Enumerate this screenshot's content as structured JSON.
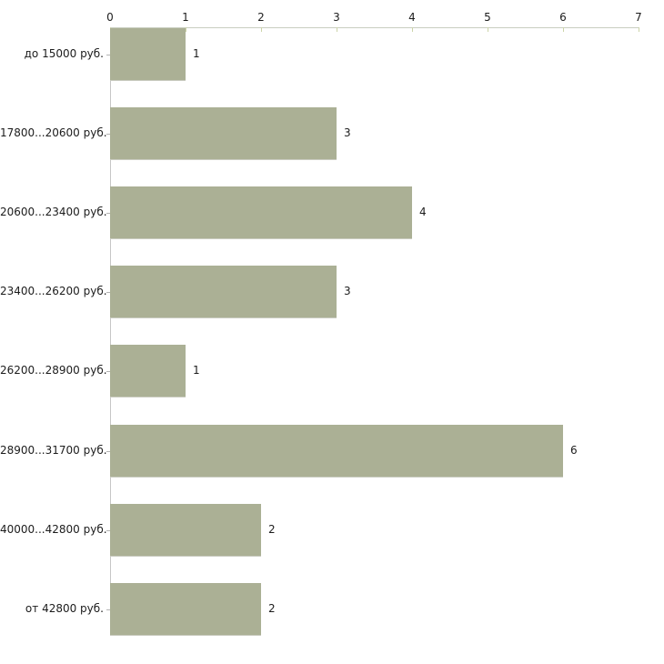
{
  "chart_data": {
    "type": "bar",
    "orientation": "horizontal",
    "title": "",
    "xlabel": "",
    "ylabel": "",
    "categories": [
      "до 15000 руб.",
      "17800...20600 руб.",
      "20600...23400 руб.",
      "23400...26200 руб.",
      "26200...28900 руб.",
      "28900...31700 руб.",
      "40000...42800 руб.",
      "от 42800 руб."
    ],
    "values": [
      1,
      3,
      4,
      3,
      1,
      6,
      2,
      2
    ],
    "value_labels": [
      "1",
      "3",
      "4",
      "3",
      "1",
      "6",
      "2",
      "2"
    ],
    "xlim": [
      0,
      7
    ],
    "x_ticks": [
      "0",
      "1",
      "2",
      "3",
      "4",
      "5",
      "6",
      "7"
    ],
    "axis_position": "top",
    "grid": false,
    "legend": "none",
    "colors": {
      "bar_fill": "#abb095",
      "bar_bottom_edge": "#c9cbc0",
      "h_axis_line": "#c9cec0",
      "v_axis_line": "#c6c6c6",
      "tick_mark": "#ccd4a8",
      "text": "#1c1c1c",
      "background": "#ffffff"
    }
  }
}
